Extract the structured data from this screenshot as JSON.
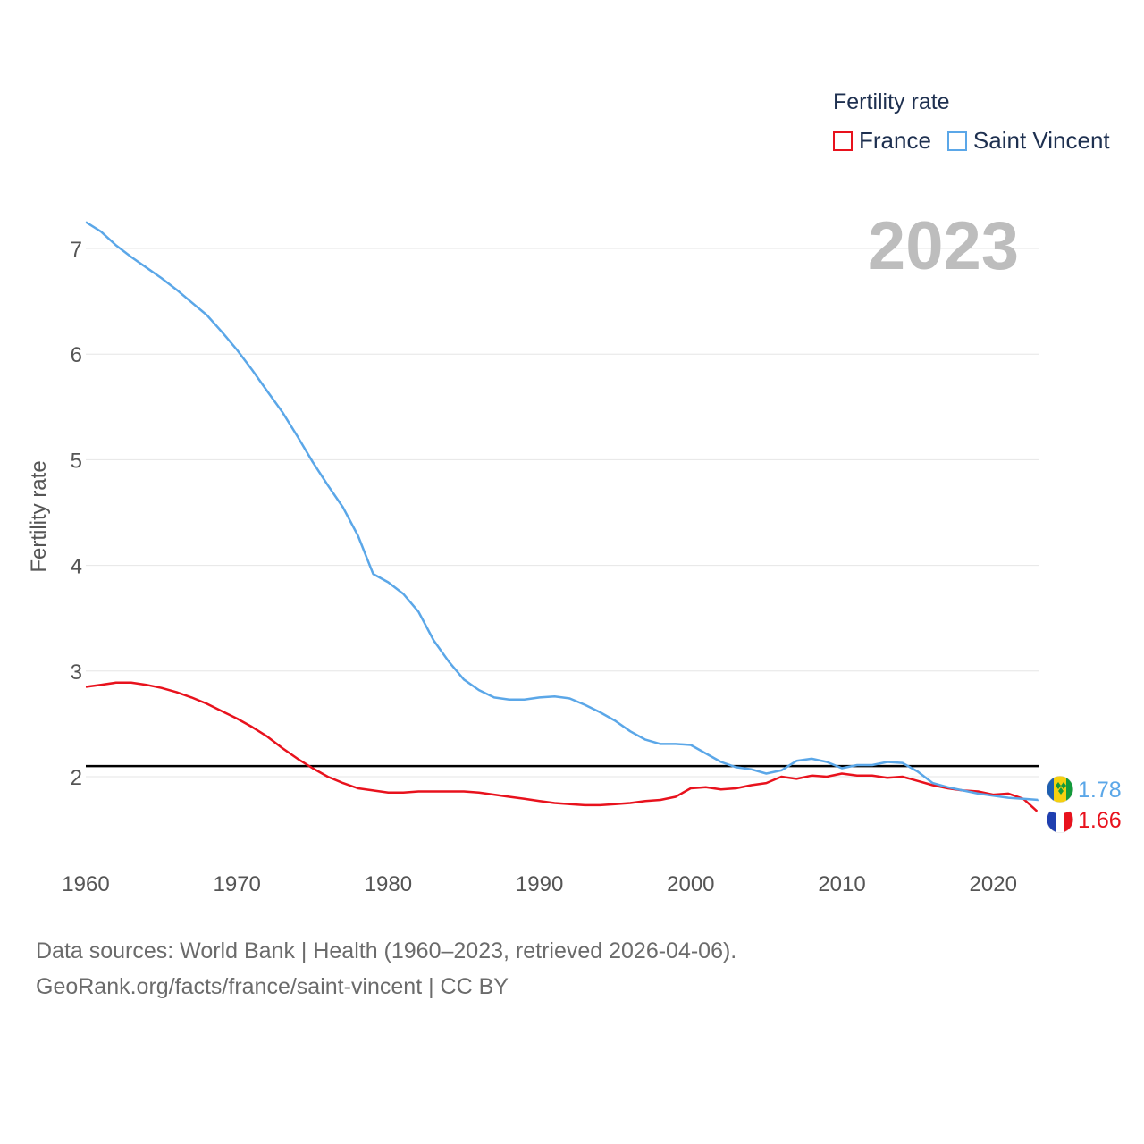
{
  "legend": {
    "title": "Fertility rate",
    "items": [
      {
        "name": "France",
        "color": "#e8121d"
      },
      {
        "name": "Saint Vincent",
        "color": "#5ba7e8"
      }
    ]
  },
  "year_label": "2023",
  "source": {
    "line1": "Data sources: World Bank | Health (1960–2023, retrieved 2026-04-06).",
    "line2": "GeoRank.org/facts/france/saint-vincent | CC BY"
  },
  "chart_data": {
    "type": "line",
    "title": "Fertility rate",
    "xlabel": "",
    "ylabel": "Fertility rate",
    "xlim": [
      1960,
      2023
    ],
    "ylim": [
      1.4,
      7.4
    ],
    "yticks": [
      2,
      3,
      4,
      5,
      6,
      7
    ],
    "xticks": [
      1960,
      1970,
      1980,
      1990,
      2000,
      2010,
      2020
    ],
    "reference_line": {
      "y": 2.1,
      "color": "#000000"
    },
    "x": [
      1960,
      1961,
      1962,
      1963,
      1964,
      1965,
      1966,
      1967,
      1968,
      1969,
      1970,
      1971,
      1972,
      1973,
      1974,
      1975,
      1976,
      1977,
      1978,
      1979,
      1980,
      1981,
      1982,
      1983,
      1984,
      1985,
      1986,
      1987,
      1988,
      1989,
      1990,
      1991,
      1992,
      1993,
      1994,
      1995,
      1996,
      1997,
      1998,
      1999,
      2000,
      2001,
      2002,
      2003,
      2004,
      2005,
      2006,
      2007,
      2008,
      2009,
      2010,
      2011,
      2012,
      2013,
      2014,
      2015,
      2016,
      2017,
      2018,
      2019,
      2020,
      2021,
      2022,
      2023
    ],
    "series": [
      {
        "name": "France",
        "color": "#e8121d",
        "end_label": "1.66",
        "values": [
          2.85,
          2.87,
          2.89,
          2.89,
          2.87,
          2.84,
          2.8,
          2.75,
          2.69,
          2.62,
          2.55,
          2.47,
          2.38,
          2.27,
          2.17,
          2.08,
          2.0,
          1.94,
          1.89,
          1.87,
          1.85,
          1.85,
          1.86,
          1.86,
          1.86,
          1.86,
          1.85,
          1.83,
          1.81,
          1.79,
          1.77,
          1.75,
          1.74,
          1.73,
          1.73,
          1.74,
          1.75,
          1.77,
          1.78,
          1.81,
          1.89,
          1.9,
          1.88,
          1.89,
          1.92,
          1.94,
          2.0,
          1.98,
          2.01,
          2.0,
          2.03,
          2.01,
          2.01,
          1.99,
          2.0,
          1.96,
          1.92,
          1.89,
          1.87,
          1.86,
          1.83,
          1.84,
          1.79,
          1.66
        ]
      },
      {
        "name": "Saint Vincent",
        "color": "#5ba7e8",
        "end_label": "1.78",
        "values": [
          7.25,
          7.16,
          7.03,
          6.92,
          6.82,
          6.72,
          6.61,
          6.49,
          6.37,
          6.21,
          6.04,
          5.85,
          5.65,
          5.45,
          5.22,
          4.98,
          4.76,
          4.55,
          4.28,
          3.92,
          3.84,
          3.73,
          3.56,
          3.29,
          3.09,
          2.92,
          2.82,
          2.75,
          2.73,
          2.73,
          2.75,
          2.76,
          2.74,
          2.68,
          2.61,
          2.53,
          2.43,
          2.35,
          2.31,
          2.31,
          2.3,
          2.22,
          2.14,
          2.09,
          2.07,
          2.03,
          2.06,
          2.15,
          2.17,
          2.14,
          2.08,
          2.11,
          2.11,
          2.14,
          2.13,
          2.05,
          1.94,
          1.9,
          1.87,
          1.84,
          1.82,
          1.8,
          1.79,
          1.78
        ]
      }
    ]
  }
}
